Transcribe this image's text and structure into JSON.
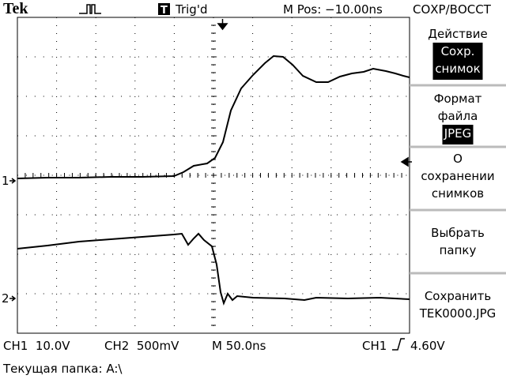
{
  "header": {
    "brand": "Tek",
    "trigger_badge": "T",
    "trigger_status": "Trig'd",
    "position": "M Pos: −10.00ns",
    "menu_title": "СОХР/ВОССТ"
  },
  "channels": {
    "ch1_marker": "1",
    "ch2_marker": "2"
  },
  "menu": {
    "items": [
      {
        "title": [
          "Действие"
        ],
        "selection": [
          "Сохр.",
          "снимок"
        ]
      },
      {
        "title": [
          "Формат",
          "файла"
        ],
        "selection": [
          "JPEG"
        ]
      },
      {
        "title": [
          "О",
          "сохранении",
          "снимков"
        ]
      },
      {
        "title": [
          "Выбрать",
          "папку"
        ]
      },
      {
        "title": [
          "Сохранить",
          "TEK0000.JPG"
        ]
      }
    ]
  },
  "status": {
    "ch1": "CH1  10.0V",
    "ch2": "CH2  500mV",
    "timebase": "M 50.0ns",
    "trigger_source": "CH1",
    "trigger_level": "4.60V"
  },
  "footer": {
    "folder": "Текущая папка: A:\\"
  }
}
